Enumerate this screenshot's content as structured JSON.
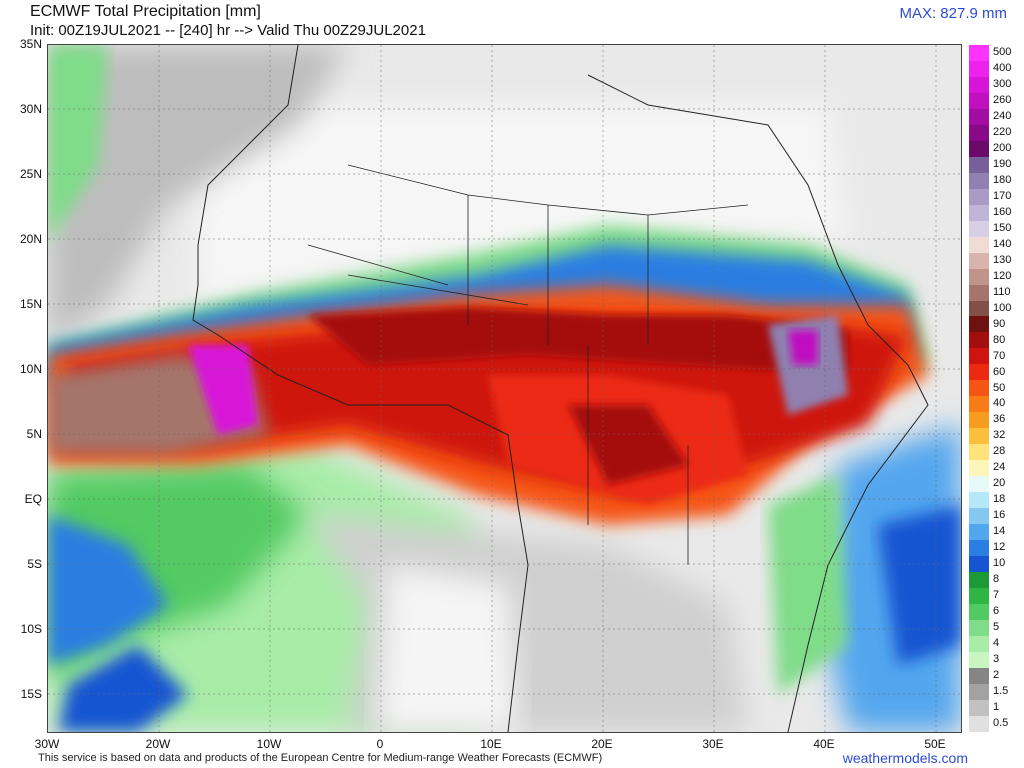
{
  "header": {
    "title": "ECMWF Total Precipitation [mm]",
    "subtitle": "Init: 00Z19JUL2021 -- [240] hr --> Valid Thu 00Z29JUL2021",
    "max_label": "MAX: 827.9 mm"
  },
  "axes": {
    "lat_labels": [
      "35N",
      "30N",
      "25N",
      "20N",
      "15N",
      "10N",
      "5N",
      "EQ",
      "5S",
      "10S",
      "15S"
    ],
    "lon_labels": [
      "30W",
      "20W",
      "10W",
      "0",
      "10E",
      "20E",
      "30E",
      "40E",
      "50E"
    ]
  },
  "colorbar": {
    "labels": [
      "500",
      "400",
      "300",
      "260",
      "240",
      "220",
      "200",
      "190",
      "180",
      "170",
      "160",
      "150",
      "140",
      "130",
      "120",
      "110",
      "100",
      "90",
      "80",
      "70",
      "60",
      "50",
      "40",
      "36",
      "32",
      "28",
      "24",
      "20",
      "18",
      "16",
      "14",
      "12",
      "10",
      "8",
      "7",
      "6",
      "5",
      "4",
      "3",
      "2",
      "1.5",
      "1",
      "0.5"
    ],
    "colors": [
      "#ff33ff",
      "#ee22ee",
      "#d814d8",
      "#c010c0",
      "#a20ca2",
      "#880a88",
      "#6c0a6c",
      "#776099",
      "#8f80b0",
      "#a99bc6",
      "#c0b4d9",
      "#d7cfe6",
      "#f1dcd5",
      "#d9b4ac",
      "#c0948b",
      "#a5746b",
      "#835049",
      "#6e1210",
      "#a50e0e",
      "#cf1410",
      "#ec2a12",
      "#f65414",
      "#f77c18",
      "#f89c20",
      "#fbbf3c",
      "#fde37a",
      "#fef6b8",
      "#e6f8f8",
      "#b4e8f6",
      "#84c8f2",
      "#52a6ee",
      "#2b7ee2",
      "#1555d2",
      "#1c9a38",
      "#2fb544",
      "#52ca62",
      "#7fdc88",
      "#a8eca8",
      "#c8f5c0",
      "#858585",
      "#a2a2a2",
      "#c1c1c1",
      "#e0e0e0"
    ]
  },
  "footer": {
    "credit": "This service is based on data and products of the European Centre for Medium-range Weather Forecasts (ECMWF)",
    "brand": "weathermodels.com"
  }
}
